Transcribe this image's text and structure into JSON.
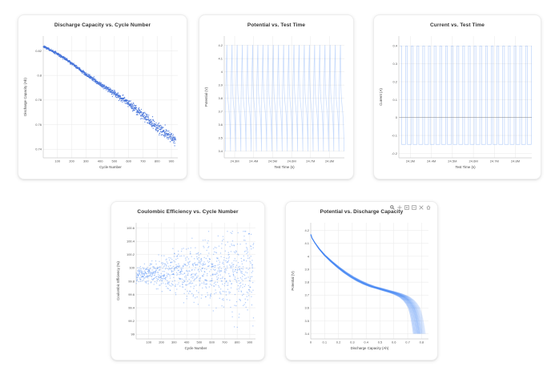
{
  "page": {
    "background": "#ffffff"
  },
  "theme": {
    "accent_blue": "#4285f4",
    "solid_point_blue": "#3f6fd8",
    "grid": "#e8e8e8",
    "axis": "#cccccc",
    "title_text": "#333333",
    "tick_text": "#555555"
  },
  "modebar": {
    "icons": [
      "zoom-icon",
      "pan-icon",
      "zoom-in-icon",
      "zoom-out-icon",
      "autoscale-icon",
      "reset-axes-icon"
    ]
  },
  "chart_data": [
    {
      "type": "scatter",
      "title": "Discharge Capacity vs. Cycle Number",
      "xlabel": "Cycle Number",
      "ylabel": "Discharge Capacity (Ah)",
      "xlim": [
        0,
        945
      ],
      "ylim": [
        0.733,
        0.832
      ],
      "xticks": [
        100,
        200,
        300,
        400,
        500,
        600,
        700,
        800,
        900
      ],
      "xtick_labels": [
        "100",
        "200",
        "300",
        "400",
        "500",
        "600",
        "700",
        "800",
        "900"
      ],
      "yticks": [
        0.82,
        0.8,
        0.78,
        0.76,
        0.74
      ],
      "ytick_labels": [
        "0.82",
        "0.8",
        "0.78",
        "0.76",
        "0.74"
      ],
      "grid": true,
      "n_points": 930,
      "x_start": 1,
      "x_end": 930,
      "trend": [
        [
          1,
          0.8235
        ],
        [
          100,
          0.8175
        ],
        [
          200,
          0.81
        ],
        [
          300,
          0.801
        ],
        [
          400,
          0.793
        ],
        [
          500,
          0.7855
        ],
        [
          600,
          0.7775
        ],
        [
          700,
          0.768
        ],
        [
          800,
          0.758
        ],
        [
          900,
          0.7495
        ],
        [
          930,
          0.7465
        ]
      ],
      "noise_sd": [
        [
          1,
          0.0004
        ],
        [
          300,
          0.0007
        ],
        [
          500,
          0.0011
        ],
        [
          700,
          0.0018
        ],
        [
          930,
          0.0024
        ]
      ],
      "clamp": [
        0.735,
        0.8295
      ],
      "marker": {
        "color": "#3f6fd8",
        "opacity": 0.85,
        "r": 0.65
      },
      "seed": 7
    },
    {
      "type": "waveform",
      "title": "Potential vs. Test Time",
      "xlabel": "Test Time (s)",
      "ylabel": "Potential (V)",
      "xlim": [
        24.245,
        24.878
      ],
      "ylim": [
        3.35,
        4.27
      ],
      "xticks": [
        24.3,
        24.4,
        24.5,
        24.6,
        24.7,
        24.8
      ],
      "xtick_labels": [
        "24.3M",
        "24.4M",
        "24.5M",
        "24.6M",
        "24.7M",
        "24.8M"
      ],
      "yticks": [
        4.2,
        4.1,
        4.0,
        3.9,
        3.8,
        3.7,
        3.6,
        3.5,
        3.4
      ],
      "ytick_labels": [
        "4.2",
        "4.1",
        "4",
        "3.9",
        "3.8",
        "3.7",
        "3.6",
        "3.5",
        "3.4"
      ],
      "grid": true,
      "x_start": 24.251,
      "period": 0.0272,
      "n_cycles": 23,
      "shape": [
        [
          0,
          3.4
        ],
        [
          0.02,
          3.74
        ],
        [
          0.1,
          3.92
        ],
        [
          0.18,
          4.04
        ],
        [
          0.245,
          4.14
        ],
        [
          0.27,
          4.2
        ],
        [
          0.305,
          4.2
        ],
        [
          0.335,
          3.96
        ],
        [
          0.42,
          3.84
        ],
        [
          0.52,
          3.78
        ],
        [
          0.64,
          3.73
        ],
        [
          0.76,
          3.68
        ],
        [
          0.86,
          3.61
        ],
        [
          0.94,
          3.51
        ],
        [
          1,
          3.4
        ]
      ],
      "line": {
        "color": "#4285f4",
        "opacity": 0.3,
        "width": 0.7
      }
    },
    {
      "type": "waveform",
      "title": "Current vs. Test Time",
      "xlabel": "Test Time (s)",
      "ylabel": "Current (A)",
      "xlim": [
        24.245,
        24.878
      ],
      "ylim": [
        -0.225,
        0.455
      ],
      "xticks": [
        24.3,
        24.4,
        24.5,
        24.6,
        24.7,
        24.8
      ],
      "xtick_labels": [
        "24.3M",
        "24.4M",
        "24.5M",
        "24.6M",
        "24.7M",
        "24.8M"
      ],
      "yticks": [
        0.4,
        0.3,
        0.2,
        0.1,
        0,
        -0.1,
        -0.2
      ],
      "ytick_labels": [
        "0.4",
        "0.3",
        "0.2",
        "0.1",
        "0",
        "-0.1",
        "-0.2"
      ],
      "grid": true,
      "zeroline": true,
      "x_start": 24.251,
      "period": 0.0272,
      "n_cycles": 23,
      "shape": [
        [
          0,
          0.4
        ],
        [
          0.268,
          0.4
        ],
        [
          0.272,
          -0.15
        ],
        [
          0.958,
          -0.15
        ],
        [
          0.962,
          0.4
        ],
        [
          1,
          0.4
        ]
      ],
      "line": {
        "color": "#4285f4",
        "opacity": 0.35,
        "width": 0.7
      }
    },
    {
      "type": "scatter",
      "title": "Coulombic Efficiency vs. Cycle Number",
      "xlabel": "Cycle Number",
      "ylabel": "Coulombic Efficiency (%)",
      "xlim": [
        0,
        945
      ],
      "ylim": [
        98.93,
        100.68
      ],
      "xticks": [
        100,
        200,
        300,
        400,
        500,
        600,
        700,
        800,
        900
      ],
      "xtick_labels": [
        "100",
        "200",
        "300",
        "400",
        "500",
        "600",
        "700",
        "800",
        "900"
      ],
      "yticks": [
        100.6,
        100.4,
        100.2,
        100,
        99.8,
        99.6,
        99.4,
        99.2,
        99
      ],
      "ytick_labels": [
        "100.6",
        "100.4",
        "100.2",
        "100",
        "99.8",
        "99.6",
        "99.4",
        "99.2",
        "99"
      ],
      "grid": true,
      "n_points": 930,
      "x_start": 1,
      "x_end": 930,
      "trend": [
        [
          1,
          99.9
        ],
        [
          150,
          99.92
        ],
        [
          350,
          99.95
        ],
        [
          600,
          99.94
        ],
        [
          930,
          99.9
        ]
      ],
      "noise_sd": [
        [
          1,
          0.05
        ],
        [
          150,
          0.09
        ],
        [
          300,
          0.15
        ],
        [
          500,
          0.23
        ],
        [
          700,
          0.3
        ],
        [
          930,
          0.36
        ]
      ],
      "clamp": [
        99.0,
        100.55
      ],
      "marker": {
        "color": "#4285f4",
        "opacity": 0.4,
        "r": 0.7
      },
      "seed": 13
    },
    {
      "type": "curve-family",
      "title": "Potential vs. Discharge Capacity",
      "xlabel": "Discharge Capacity (Ah)",
      "ylabel": "Potential (V)",
      "xlim": [
        0,
        0.85
      ],
      "ylim": [
        3.36,
        4.26
      ],
      "xticks": [
        0,
        0.1,
        0.2,
        0.3,
        0.4,
        0.5,
        0.6,
        0.7,
        0.8
      ],
      "xtick_labels": [
        "0",
        "0.1",
        "0.2",
        "0.3",
        "0.4",
        "0.5",
        "0.6",
        "0.7",
        "0.8"
      ],
      "yticks": [
        4.2,
        4.1,
        4.0,
        3.9,
        3.8,
        3.7,
        3.6,
        3.5,
        3.4
      ],
      "ytick_labels": [
        "4.2",
        "4.1",
        "4",
        "3.9",
        "3.8",
        "3.7",
        "3.6",
        "3.5",
        "3.4"
      ],
      "grid": true,
      "anchors": [
        [
          0,
          4.17
        ],
        [
          0.01,
          4.14
        ],
        [
          0.03,
          4.105
        ],
        [
          0.06,
          4.06
        ],
        [
          0.1,
          4.01
        ],
        [
          0.15,
          3.96
        ],
        [
          0.2,
          3.915
        ],
        [
          0.25,
          3.875
        ],
        [
          0.3,
          3.84
        ],
        [
          0.35,
          3.81
        ],
        [
          0.4,
          3.785
        ],
        [
          0.45,
          3.765
        ],
        [
          0.5,
          3.75
        ],
        [
          0.55,
          3.735
        ],
        [
          0.6,
          3.72
        ],
        [
          0.64,
          3.705
        ],
        [
          0.68,
          3.685
        ],
        [
          0.71,
          3.66
        ],
        [
          0.73,
          3.635
        ],
        [
          0.75,
          3.6
        ],
        [
          0.76,
          3.565
        ],
        [
          0.77,
          3.52
        ],
        [
          0.78,
          3.46
        ],
        [
          0.788,
          3.4
        ]
      ],
      "curves": [
        {
          "scale": 0.94,
          "opacity": 0.34
        },
        {
          "scale": 0.947,
          "opacity": 0.36
        },
        {
          "scale": 0.953,
          "opacity": 0.38
        },
        {
          "scale": 0.959,
          "opacity": 0.4
        },
        {
          "scale": 0.966,
          "opacity": 0.42
        },
        {
          "scale": 0.972,
          "opacity": 0.44
        },
        {
          "scale": 0.979,
          "opacity": 0.46
        },
        {
          "scale": 0.985,
          "opacity": 0.48
        },
        {
          "scale": 0.992,
          "opacity": 0.5
        },
        {
          "scale": 0.998,
          "opacity": 0.47
        },
        {
          "scale": 1.005,
          "opacity": 0.42
        },
        {
          "scale": 1.011,
          "opacity": 0.38
        },
        {
          "scale": 1.018,
          "opacity": 0.34
        },
        {
          "scale": 1.024,
          "opacity": 0.3
        },
        {
          "scale": 1.031,
          "opacity": 0.27
        },
        {
          "scale": 1.037,
          "opacity": 0.24
        },
        {
          "scale": 1.044,
          "opacity": 0.21
        },
        {
          "scale": 1.05,
          "opacity": 0.18
        }
      ],
      "line": {
        "color": "#4285f4",
        "width": 0.8
      }
    }
  ]
}
